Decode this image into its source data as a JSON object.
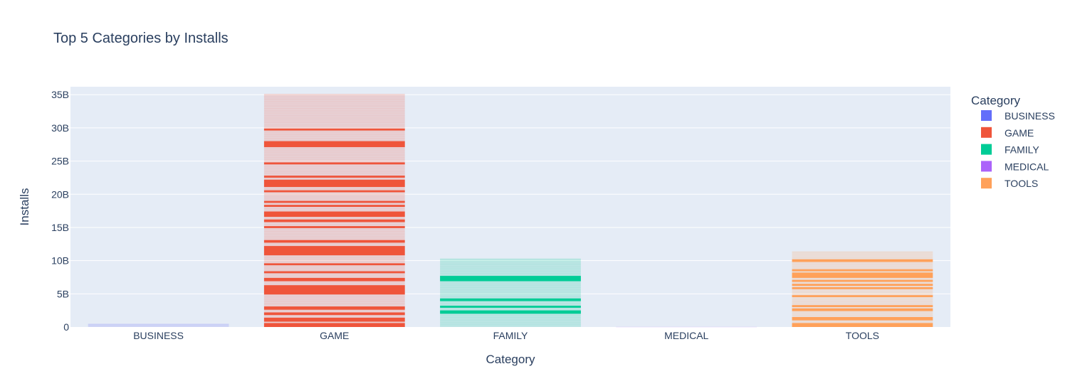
{
  "chart_data": {
    "type": "bar",
    "title": "Top 5 Categories by Installs",
    "xlabel": "Category",
    "ylabel": "Installs",
    "categories": [
      "BUSINESS",
      "GAME",
      "FAMILY",
      "MEDICAL",
      "TOOLS"
    ],
    "values": [
      0.5,
      35.1,
      10.3,
      0.04,
      11.4
    ],
    "value_unit": "B",
    "ylim": [
      0,
      36.2
    ],
    "yticks": [
      0,
      5,
      10,
      15,
      20,
      25,
      30,
      35
    ],
    "ytick_labels": [
      "0",
      "5B",
      "10B",
      "15B",
      "20B",
      "25B",
      "30B",
      "35B"
    ],
    "grid": true,
    "legend": {
      "title": "Category",
      "placement": "right",
      "entries": [
        {
          "name": "BUSINESS",
          "color": "#636efa"
        },
        {
          "name": "GAME",
          "color": "#ef553b"
        },
        {
          "name": "FAMILY",
          "color": "#00cc96"
        },
        {
          "name": "MEDICAL",
          "color": "#ab63fa"
        },
        {
          "name": "TOOLS",
          "color": "#ffa15a"
        }
      ]
    },
    "colors": {
      "BUSINESS": "#636efa",
      "GAME": "#ef553b",
      "FAMILY": "#00cc96",
      "MEDICAL": "#ab63fa",
      "TOOLS": "#ffa15a"
    },
    "solid_bands": {
      "BUSINESS": [],
      "GAME": [
        [
          0,
          0.6
        ],
        [
          0.8,
          1.4
        ],
        [
          1.8,
          2.2
        ],
        [
          2.6,
          3.1
        ],
        [
          4.9,
          6.3
        ],
        [
          6.9,
          7.4
        ],
        [
          8.1,
          8.4
        ],
        [
          9.3,
          9.6
        ],
        [
          10.8,
          12.2
        ],
        [
          12.7,
          13.1
        ],
        [
          14.9,
          15.2
        ],
        [
          15.8,
          16.2
        ],
        [
          16.6,
          17.4
        ],
        [
          18.1,
          18.4
        ],
        [
          18.7,
          19.0
        ],
        [
          20.3,
          20.6
        ],
        [
          21.1,
          22.2
        ],
        [
          22.5,
          22.8
        ],
        [
          24.5,
          24.8
        ],
        [
          27.1,
          28.0
        ],
        [
          29.6,
          29.9
        ]
      ],
      "FAMILY": [
        [
          2.0,
          2.5
        ],
        [
          2.9,
          3.2
        ],
        [
          3.9,
          4.3
        ],
        [
          6.9,
          7.7
        ]
      ],
      "MEDICAL": [],
      "TOOLS": [
        [
          0,
          0.6
        ],
        [
          1.0,
          1.5
        ],
        [
          2.4,
          2.8
        ],
        [
          3.0,
          3.3
        ],
        [
          4.5,
          4.8
        ],
        [
          5.7,
          6.0
        ],
        [
          6.2,
          6.5
        ],
        [
          6.8,
          7.1
        ],
        [
          7.4,
          8.2
        ],
        [
          8.4,
          8.7
        ],
        [
          9.8,
          10.2
        ]
      ]
    }
  }
}
